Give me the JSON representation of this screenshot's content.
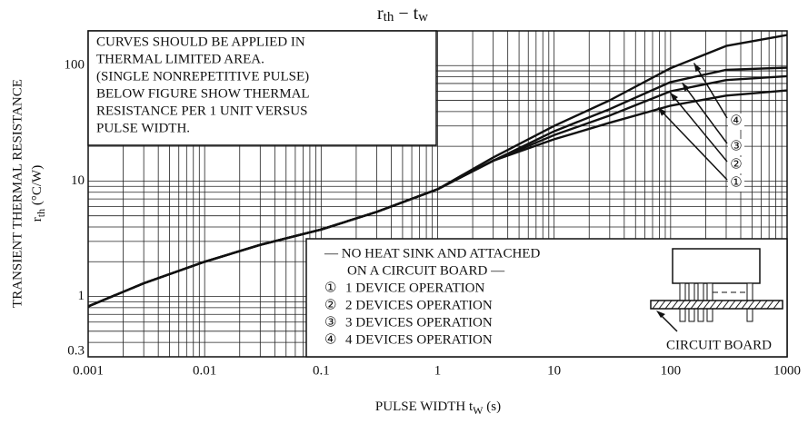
{
  "chart_data": {
    "type": "line",
    "title": [
      "r",
      "th",
      " − t",
      "w"
    ],
    "x_label": [
      "PULSE WIDTH  t",
      "W",
      "  (s)"
    ],
    "y_label": [
      "TRANSIENT THERMAL RESISTANCE",
      "r",
      "th",
      "  (°C/W)"
    ],
    "x": [
      0.001,
      0.003,
      0.01,
      0.03,
      0.1,
      0.3,
      1,
      3,
      10,
      30,
      100,
      300,
      1000
    ],
    "series": [
      {
        "label": "①",
        "name": "1 DEVICE OPERATION",
        "color": "#111111",
        "values": [
          0.82,
          1.3,
          2.0,
          2.8,
          3.8,
          5.4,
          8.5,
          15,
          23,
          32,
          45,
          55,
          61
        ]
      },
      {
        "label": "②",
        "name": "2 DEVICES OPERATION",
        "color": "#111111",
        "values": [
          0.82,
          1.3,
          2.0,
          2.8,
          3.8,
          5.4,
          8.5,
          15,
          25,
          37,
          60,
          75,
          81
        ]
      },
      {
        "label": "③",
        "name": "3 DEVICES OPERATION",
        "color": "#111111",
        "values": [
          0.82,
          1.3,
          2.0,
          2.8,
          3.8,
          5.4,
          8.5,
          15,
          27,
          42,
          72,
          92,
          96
        ]
      },
      {
        "label": "④",
        "name": "4 DEVICES OPERATION",
        "color": "#111111",
        "values": [
          0.82,
          1.3,
          2.0,
          2.8,
          3.8,
          5.4,
          8.5,
          16,
          30,
          50,
          95,
          148,
          184
        ]
      }
    ],
    "xlim": [
      0.001,
      1000
    ],
    "ylim": [
      0.3,
      200
    ],
    "xticks": [
      0.001,
      0.01,
      0.1,
      1,
      10,
      100,
      1000
    ],
    "yticks": [
      0.3,
      1,
      10,
      100
    ],
    "log_x": true,
    "log_y": true,
    "grid": true,
    "note": [
      "CURVES SHOULD BE APPLIED IN",
      "THERMAL LIMITED AREA.",
      "(SINGLE NONREPETITIVE PULSE)",
      "BELOW FIGURE SHOW THERMAL",
      "RESISTANCE PER 1 UNIT VERSUS",
      "PULSE WIDTH."
    ],
    "legend_heading": [
      "—  NO HEAT SINK AND ATTACHED",
      "ON A CIRCUIT BOARD —"
    ],
    "diagram_label": "CIRCUIT BOARD"
  }
}
